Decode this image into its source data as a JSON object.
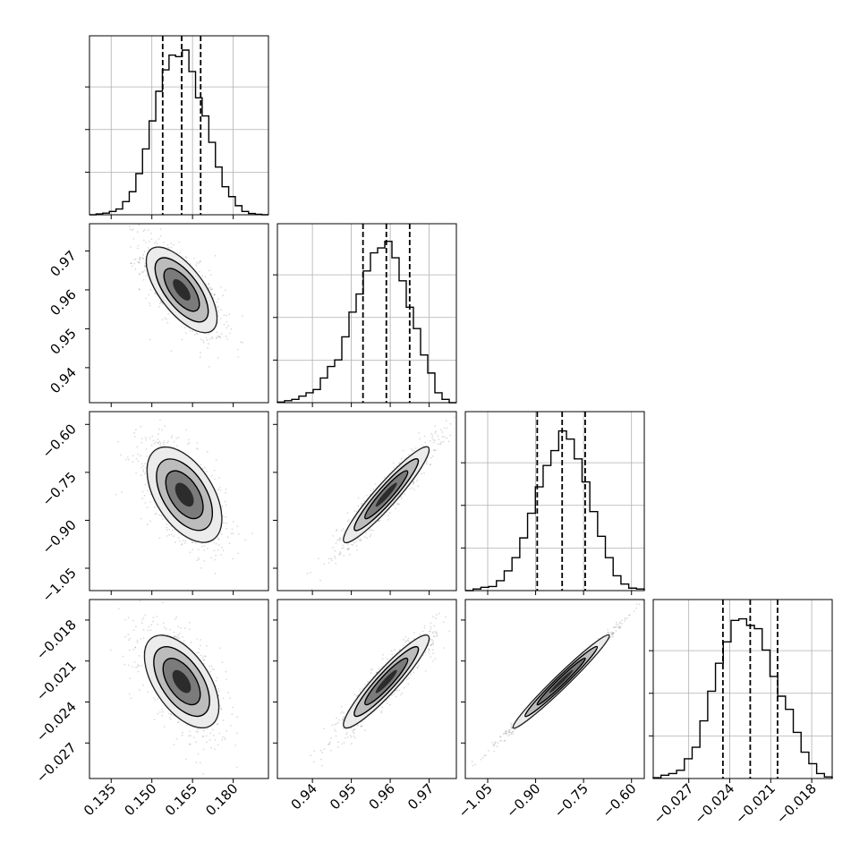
{
  "chart_data": {
    "type": "corner",
    "params": [
      {
        "ticks": [
          0.135,
          0.15,
          0.165,
          0.18
        ],
        "tick_labels": [
          "0.135",
          "0.150",
          "0.165",
          "0.180"
        ],
        "range": [
          0.127,
          0.193
        ]
      },
      {
        "ticks": [
          0.94,
          0.95,
          0.96,
          0.97
        ],
        "tick_labels": [
          "0.94",
          "0.95",
          "0.96",
          "0.97"
        ],
        "range": [
          0.931,
          0.977
        ]
      },
      {
        "ticks": [
          -1.05,
          -0.9,
          -0.75,
          -0.6
        ],
        "tick_labels": [
          "−1.05",
          "−0.90",
          "−0.75",
          "−0.60"
        ],
        "range": [
          -1.12,
          -0.56
        ]
      },
      {
        "ticks": [
          -0.027,
          -0.024,
          -0.021,
          -0.018
        ],
        "tick_labels": [
          "−0.027",
          "−0.024",
          "−0.021",
          "−0.018"
        ],
        "range": [
          -0.0296,
          -0.0165
        ]
      }
    ],
    "quantiles": [
      [
        0.154,
        0.161,
        0.168
      ],
      [
        0.953,
        0.959,
        0.965
      ],
      [
        -0.895,
        -0.817,
        -0.745
      ],
      [
        -0.0245,
        -0.0225,
        -0.0205
      ]
    ],
    "histograms": [
      [
        0,
        0.005,
        0.01,
        0.02,
        0.035,
        0.08,
        0.14,
        0.25,
        0.4,
        0.57,
        0.75,
        0.88,
        0.97,
        0.96,
        1.0,
        0.87,
        0.71,
        0.6,
        0.44,
        0.29,
        0.17,
        0.11,
        0.055,
        0.02,
        0.008,
        0.003,
        0.0
      ],
      [
        0.004,
        0.012,
        0.02,
        0.04,
        0.06,
        0.08,
        0.15,
        0.22,
        0.26,
        0.4,
        0.55,
        0.66,
        0.8,
        0.91,
        0.94,
        0.98,
        0.88,
        0.74,
        0.58,
        0.45,
        0.29,
        0.18,
        0.06,
        0.02,
        0.0
      ],
      [
        0,
        0.01,
        0.02,
        0.025,
        0.06,
        0.12,
        0.2,
        0.32,
        0.47,
        0.63,
        0.76,
        0.85,
        0.97,
        0.92,
        0.8,
        0.66,
        0.48,
        0.33,
        0.2,
        0.09,
        0.04,
        0.015,
        0.01
      ],
      [
        0.005,
        0.02,
        0.03,
        0.05,
        0.12,
        0.19,
        0.35,
        0.53,
        0.7,
        0.83,
        0.96,
        0.97,
        0.93,
        0.91,
        0.78,
        0.62,
        0.5,
        0.42,
        0.28,
        0.16,
        0.09,
        0.03,
        0.01
      ]
    ],
    "pairs": {
      "1,0": {
        "mean": [
          0.161,
          0.96
        ],
        "sd": [
          0.0065,
          0.0055
        ],
        "corr": -0.68
      },
      "2,0": {
        "mean": [
          0.162,
          -0.82
        ],
        "sd": [
          0.0068,
          0.075
        ],
        "corr": -0.55
      },
      "2,1": {
        "mean": [
          0.959,
          -0.82
        ],
        "sd": [
          0.0055,
          0.075
        ],
        "corr": 0.94
      },
      "3,0": {
        "mean": [
          0.161,
          -0.0225
        ],
        "sd": [
          0.0068,
          0.0017
        ],
        "corr": -0.58
      },
      "3,1": {
        "mean": [
          0.959,
          -0.0225
        ],
        "sd": [
          0.0055,
          0.0017
        ],
        "corr": 0.93
      },
      "3,2": {
        "mean": [
          -0.82,
          -0.0225
        ],
        "sd": [
          0.075,
          0.0017
        ],
        "corr": 0.995
      }
    }
  }
}
